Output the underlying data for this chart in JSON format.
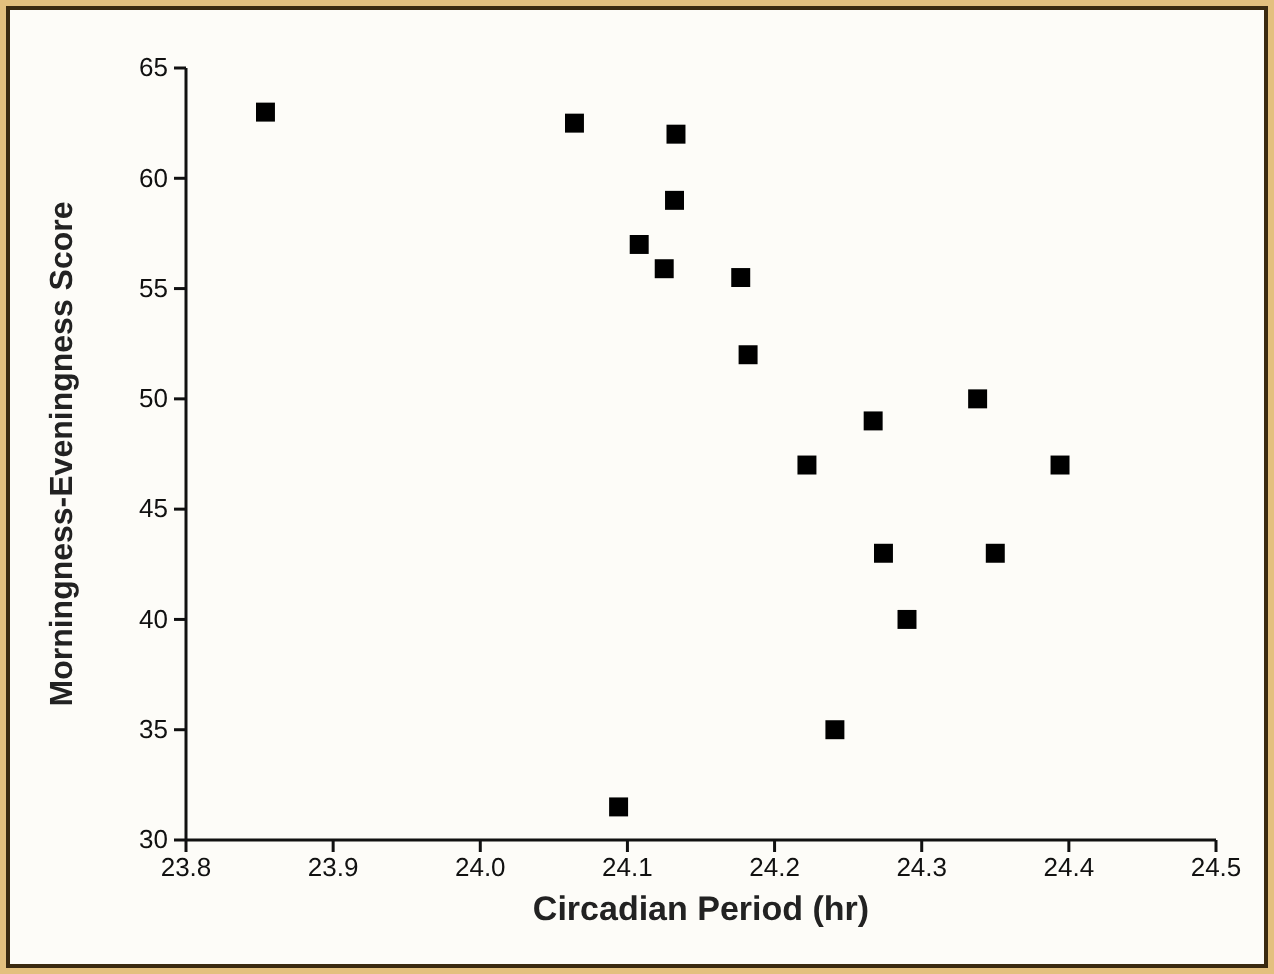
{
  "chart_data": {
    "type": "scatter",
    "xlabel": "Circadian Period (hr)",
    "ylabel": "Morningness-Eveningness Score",
    "x": [
      23.854,
      24.064,
      24.133,
      24.132,
      24.108,
      24.125,
      24.177,
      24.182,
      24.222,
      24.267,
      24.338,
      24.394,
      24.274,
      24.35,
      24.29,
      24.241,
      24.094
    ],
    "series": [
      {
        "color": "#000000",
        "values": [
          63.0,
          62.5,
          62.0,
          59.0,
          57.0,
          55.9,
          55.5,
          52.0,
          47.0,
          49.0,
          50.0,
          47.0,
          43.0,
          43.0,
          40.0,
          35.0,
          31.5
        ]
      }
    ],
    "xlim": [
      23.8,
      24.5
    ],
    "xticks": [
      {
        "value": 23.8,
        "label": "23.8"
      },
      {
        "value": 23.9,
        "label": "23.9"
      },
      {
        "value": 24.0,
        "label": "24.0"
      },
      {
        "value": 24.1,
        "label": "24.1"
      },
      {
        "value": 24.2,
        "label": "24.2"
      },
      {
        "value": 24.3,
        "label": "24.3"
      },
      {
        "value": 24.4,
        "label": "24.4"
      },
      {
        "value": 24.5,
        "label": "24.5"
      }
    ],
    "ylim": [
      30,
      65
    ],
    "yticks": [
      30,
      35,
      40,
      45,
      50,
      55,
      60,
      65
    ],
    "marker": "square"
  }
}
